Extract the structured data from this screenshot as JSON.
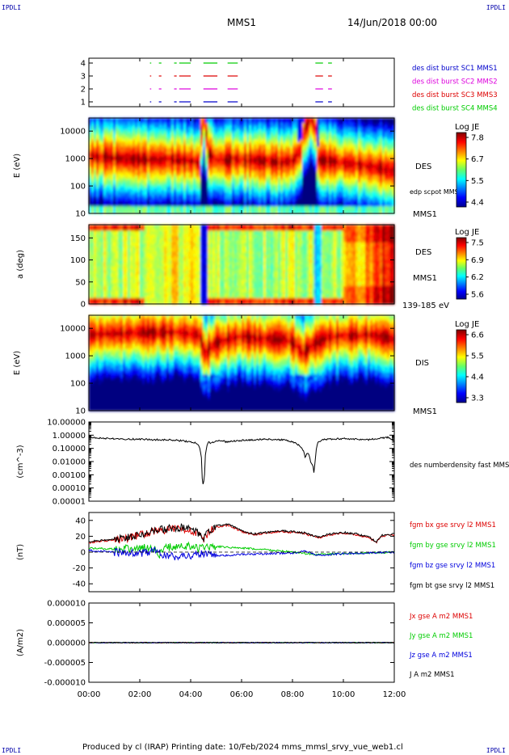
{
  "corner_label": "IPDLI",
  "header": {
    "spacecraft": "MMS1",
    "date": "14/Jun/2018 00:00"
  },
  "footer": {
    "text": "Produced by cl (IRAP)   Printing date: 10/Feb/2024   mms_mmsl_srvy_vue_web1.cl"
  },
  "x_axis": {
    "ticks": [
      "00:00",
      "02:00",
      "04:00",
      "06:00",
      "08:00",
      "10:00",
      "12:00"
    ],
    "range_hours": [
      0,
      12
    ]
  },
  "chart_data": [
    {
      "id": "burst-availability",
      "type": "scatter",
      "yticks": [
        "1",
        "2",
        "3",
        "4"
      ],
      "series": [
        {
          "name": "des dist burst SC1 MMS1",
          "level": 4,
          "color": "#00cc00",
          "intervals": [
            [
              2.4,
              2.45
            ],
            [
              2.75,
              2.85
            ],
            [
              3.35,
              3.45
            ],
            [
              3.55,
              4.0
            ],
            [
              4.5,
              5.05
            ],
            [
              5.45,
              5.85
            ],
            [
              8.9,
              9.2
            ],
            [
              9.4,
              9.55
            ]
          ]
        },
        {
          "name": "des dist burst SC2 MMS2",
          "level": 2,
          "color": "#dd00dd",
          "intervals": [
            [
              2.4,
              2.45
            ],
            [
              2.75,
              2.85
            ],
            [
              3.35,
              3.45
            ],
            [
              3.55,
              4.0
            ],
            [
              4.5,
              5.05
            ],
            [
              5.45,
              5.85
            ],
            [
              8.9,
              9.2
            ],
            [
              9.4,
              9.55
            ]
          ]
        },
        {
          "name": "des dist burst SC3 MMS3",
          "level": 3,
          "color": "#dd0000",
          "intervals": [
            [
              2.4,
              2.45
            ],
            [
              2.75,
              2.85
            ],
            [
              3.35,
              3.45
            ],
            [
              3.55,
              4.0
            ],
            [
              4.5,
              5.05
            ],
            [
              5.45,
              5.85
            ],
            [
              8.9,
              9.2
            ],
            [
              9.4,
              9.55
            ]
          ]
        },
        {
          "name": "des dist burst SC4 MMS4",
          "level": 1,
          "color": "#0000cc",
          "intervals": [
            [
              2.4,
              2.45
            ],
            [
              2.75,
              2.85
            ],
            [
              3.35,
              3.45
            ],
            [
              3.55,
              4.0
            ],
            [
              4.5,
              5.05
            ],
            [
              5.45,
              5.85
            ],
            [
              8.9,
              9.2
            ],
            [
              9.4,
              9.55
            ]
          ]
        }
      ],
      "legend_colors": [
        "#0000cc",
        "#dd00dd",
        "#dd0000",
        "#00cc00"
      ]
    },
    {
      "id": "des-energy-spectrogram",
      "type": "heatmap",
      "ylabel": "E (eV)",
      "yticks": [
        "10",
        "100",
        "1000",
        "10000"
      ],
      "ylim": [
        10,
        30000
      ],
      "yscale": "log",
      "label": "DES",
      "label2": "MMS1",
      "overlay_label": "edp scpot MMS1",
      "colorbar": {
        "title": "Log JE",
        "ticks": [
          "7.8",
          "6.7",
          "5.5",
          "4.4"
        ],
        "range": [
          4.4,
          7.8
        ]
      },
      "peak_energy": [
        [
          0,
          1200
        ],
        [
          1.5,
          1000
        ],
        [
          2.5,
          900
        ],
        [
          3.5,
          900
        ],
        [
          4.4,
          700
        ],
        [
          4.5,
          30000
        ],
        [
          4.65,
          1500
        ],
        [
          5,
          900
        ],
        [
          6,
          900
        ],
        [
          7,
          800
        ],
        [
          7.5,
          700
        ],
        [
          8,
          800
        ],
        [
          8.35,
          1800
        ],
        [
          8.75,
          30000
        ],
        [
          9.0,
          900
        ],
        [
          10,
          700
        ],
        [
          11,
          500
        ],
        [
          12,
          350
        ]
      ],
      "low_flux_hours": [
        [
          4.35,
          4.65
        ],
        [
          8.2,
          9.0
        ]
      ]
    },
    {
      "id": "des-pitch-angle",
      "type": "heatmap",
      "ylabel": "a (deg)",
      "yticks": [
        "0",
        "50",
        "100",
        "150"
      ],
      "ylim": [
        0,
        180
      ],
      "label": "DES",
      "label2": "MMS1",
      "energy_range": "139-185 eV",
      "colorbar": {
        "title": "Log JE",
        "ticks": [
          "7.5",
          "6.9",
          "6.2",
          "5.6"
        ],
        "range": [
          5.6,
          7.5
        ]
      }
    },
    {
      "id": "dis-energy-spectrogram",
      "type": "heatmap",
      "ylabel": "E (eV)",
      "yticks": [
        "10",
        "100",
        "1000",
        "10000"
      ],
      "ylim": [
        10,
        30000
      ],
      "yscale": "log",
      "label": "DIS",
      "label2": "MMS1",
      "colorbar": {
        "title": "Log JE",
        "ticks": [
          "6.6",
          "5.5",
          "4.4",
          "3.3"
        ],
        "range": [
          3.3,
          6.6
        ]
      },
      "peak_energy": [
        [
          0,
          6000
        ],
        [
          2,
          7000
        ],
        [
          3.5,
          7000
        ],
        [
          4.3,
          6000
        ],
        [
          4.55,
          1000
        ],
        [
          5,
          3000
        ],
        [
          6,
          5000
        ],
        [
          7,
          4000
        ],
        [
          7.8,
          4000
        ],
        [
          8.4,
          1200
        ],
        [
          8.8,
          2500
        ],
        [
          9.5,
          5000
        ],
        [
          11,
          6000
        ],
        [
          12,
          4000
        ]
      ]
    },
    {
      "id": "des-number-density",
      "type": "line",
      "ylabel": "(cm^-3)",
      "yticks": [
        "0.00001",
        "0.00010",
        "0.00100",
        "0.01000",
        "0.10000",
        "1.00000",
        "10.00000"
      ],
      "ylim": [
        1e-05,
        10
      ],
      "yscale": "log",
      "series": [
        {
          "name": "des numberdensity fast MMS1",
          "color": "#000000",
          "x": [
            0,
            0.5,
            1,
            1.5,
            2,
            2.5,
            3,
            3.5,
            3.8,
            4.0,
            4.2,
            4.3,
            4.4,
            4.45,
            4.5,
            4.55,
            4.6,
            4.7,
            4.8,
            5.0,
            5.2,
            5.4,
            5.6,
            6,
            6.5,
            7,
            7.5,
            7.8,
            8.0,
            8.2,
            8.4,
            8.5,
            8.6,
            8.7,
            8.8,
            8.85,
            8.9,
            8.95,
            9.0,
            9.2,
            9.5,
            10,
            10.5,
            11,
            11.5,
            11.8,
            12
          ],
          "values": [
            0.7,
            0.6,
            0.55,
            0.5,
            0.5,
            0.45,
            0.45,
            0.4,
            0.35,
            0.3,
            0.25,
            0.2,
            0.03,
            0.0005,
            4e-05,
            0.001,
            0.05,
            0.3,
            0.25,
            0.35,
            0.4,
            0.3,
            0.35,
            0.4,
            0.45,
            0.5,
            0.45,
            0.4,
            0.3,
            0.2,
            0.08,
            0.02,
            0.05,
            0.01,
            0.005,
            0.001,
            0.01,
            0.1,
            0.3,
            0.45,
            0.5,
            0.55,
            0.5,
            0.45,
            0.6,
            0.7,
            0.3
          ]
        }
      ]
    },
    {
      "id": "fgm-magnetic-field",
      "type": "line",
      "ylabel": "(nT)",
      "yticks": [
        "-40",
        "-20",
        "0",
        "20",
        "40"
      ],
      "ylim": [
        -50,
        50
      ],
      "series": [
        {
          "name": "fgm bx gse srvy l2 MMS1",
          "color": "#dd0000",
          "x": [
            0,
            0.5,
            1,
            1.5,
            2,
            2.5,
            3,
            3.5,
            4,
            4.3,
            4.5,
            4.7,
            5,
            5.5,
            6,
            6.5,
            7,
            7.5,
            8,
            8.5,
            9,
            9.5,
            10,
            10.5,
            11,
            11.3,
            11.5,
            12
          ],
          "values": [
            12,
            14,
            15,
            17,
            22,
            26,
            28,
            30,
            28,
            22,
            15,
            25,
            32,
            34,
            26,
            22,
            24,
            26,
            25,
            23,
            18,
            22,
            24,
            22,
            18,
            12,
            20,
            22
          ]
        },
        {
          "name": "fgm by gse srvy l2 MMS1",
          "color": "#00cc00",
          "x": [
            0,
            1,
            2,
            2.5,
            2.8,
            3,
            4,
            4.3,
            4.5,
            5,
            6,
            7,
            8,
            8.5,
            9,
            10,
            11,
            12
          ],
          "values": [
            5,
            4,
            5,
            6,
            -3,
            6,
            8,
            4,
            6,
            7,
            5,
            3,
            0,
            -2,
            -3,
            -2,
            -1,
            0
          ]
        },
        {
          "name": "fgm bz gse srvy l2 MMS1",
          "color": "#0000dd",
          "x": [
            0,
            1,
            2,
            2.6,
            3,
            3.5,
            4,
            4.5,
            5,
            6,
            7,
            8,
            8.5,
            9,
            10,
            11,
            12
          ],
          "values": [
            2,
            0,
            -2,
            2,
            -5,
            -6,
            -4,
            -2,
            -5,
            -3,
            -2,
            -1,
            1,
            -4,
            -2,
            -1,
            0
          ]
        },
        {
          "name": "fgm bt gse srvy l2 MMS1",
          "color": "#000000",
          "x": [
            0,
            0.5,
            1,
            1.5,
            2,
            2.5,
            3,
            3.5,
            4,
            4.3,
            4.5,
            4.7,
            5,
            5.5,
            6,
            6.5,
            7,
            7.5,
            8,
            8.5,
            9,
            9.5,
            10,
            10.5,
            11,
            11.3,
            11.5,
            12
          ],
          "values": [
            13,
            15,
            16,
            18,
            23,
            27,
            29,
            31,
            29,
            23,
            16,
            26,
            33,
            35,
            27,
            23,
            25,
            27,
            26,
            24,
            19,
            23,
            25,
            23,
            19,
            13,
            21,
            23
          ]
        }
      ]
    },
    {
      "id": "current-density",
      "type": "line",
      "ylabel": "(A/m2)",
      "yticks": [
        "-0.000010",
        "-0.000005",
        "0.000000",
        "0.000005",
        "0.000010"
      ],
      "ylim": [
        -1e-05,
        1e-05
      ],
      "series": [
        {
          "name": "Jx gse A m2 MMS1",
          "color": "#dd0000",
          "x": [
            0,
            12
          ],
          "values": [
            0,
            0
          ]
        },
        {
          "name": "Jy gse A m2 MMS1",
          "color": "#00cc00",
          "x": [
            0,
            12
          ],
          "values": [
            0,
            0
          ]
        },
        {
          "name": "Jz gse A m2 MMS1",
          "color": "#0000dd",
          "x": [
            0,
            12
          ],
          "values": [
            0,
            0
          ]
        },
        {
          "name": "J A m2 MMS1",
          "color": "#000000",
          "x": [
            0,
            12
          ],
          "values": [
            0,
            0
          ]
        }
      ]
    }
  ]
}
